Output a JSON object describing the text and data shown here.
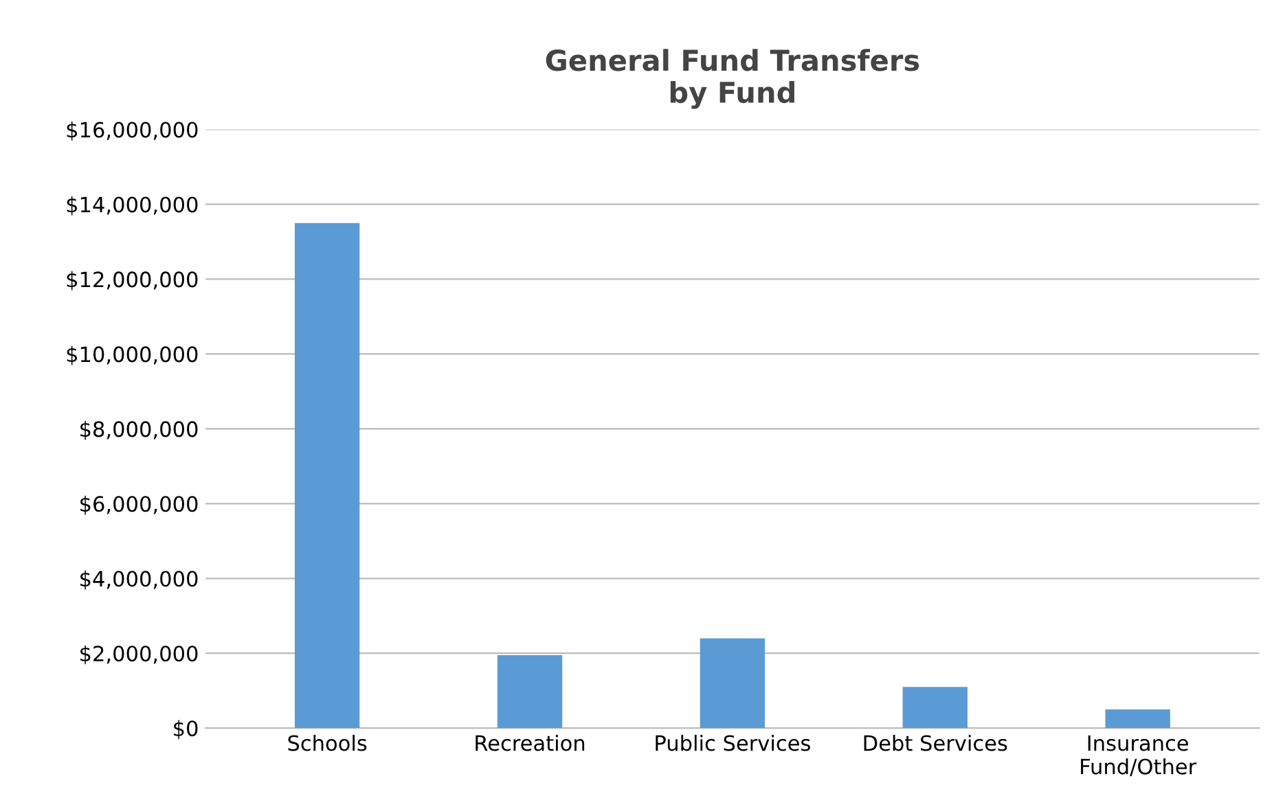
{
  "chart_data": {
    "type": "bar",
    "title": "General Fund Transfers\nby Fund",
    "categories": [
      "Schools",
      "Recreation",
      "Public Services",
      "Debt Services",
      "Insurance\nFund/Other"
    ],
    "values": [
      13500000,
      1950000,
      2400000,
      1100000,
      500000
    ],
    "color": "#5b9bd5",
    "ylim": [
      0,
      16000000
    ],
    "yticks": [
      {
        "value": 0,
        "label": "$0"
      },
      {
        "value": 2000000,
        "label": "$2,000,000"
      },
      {
        "value": 4000000,
        "label": "$4,000,000"
      },
      {
        "value": 6000000,
        "label": "$6,000,000"
      },
      {
        "value": 8000000,
        "label": "$8,000,000"
      },
      {
        "value": 10000000,
        "label": "$10,000,000"
      },
      {
        "value": 12000000,
        "label": "$12,000,000"
      },
      {
        "value": 14000000,
        "label": "$14,000,000"
      },
      {
        "value": 16000000,
        "label": "$16,000,000"
      }
    ],
    "grid": "y"
  }
}
